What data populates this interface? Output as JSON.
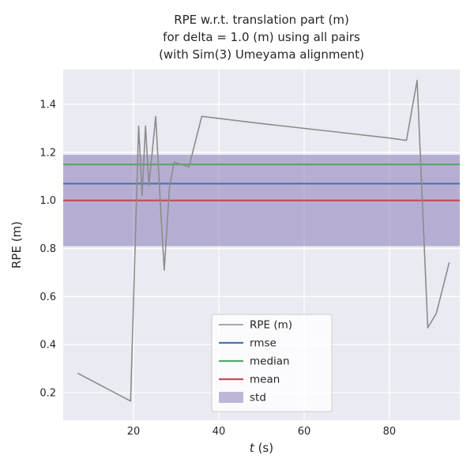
{
  "chart_data": {
    "type": "line",
    "title_lines": [
      "RPE w.r.t. translation part (m)",
      "for delta = 1.0 (m) using all pairs",
      "(with Sim(3) Umeyama alignment)"
    ],
    "xlabel_italic": "t",
    "xlabel_rest": " (s)",
    "ylabel": "RPE (m)",
    "xlim": [
      3.5,
      96.5
    ],
    "ylim": [
      0.085,
      1.545
    ],
    "xticks": [
      20,
      40,
      60,
      80
    ],
    "yticks": [
      0.2,
      0.4,
      0.6,
      0.8,
      1.0,
      1.2,
      1.4
    ],
    "grid": true,
    "background": "#eaeaf2",
    "grid_color": "#ffffff",
    "text_color": "#262626",
    "series": [
      {
        "name": "RPE (m)",
        "color": "#8c8c8c",
        "x": [
          7.0,
          19.3,
          21.2,
          22.0,
          22.8,
          23.6,
          25.2,
          26.4,
          27.2,
          28.4,
          29.5,
          33.0,
          36.0,
          50.0,
          65.0,
          80.0,
          84.0,
          86.5,
          89.0,
          91.0,
          94.0
        ],
        "y": [
          0.28,
          0.165,
          1.31,
          1.02,
          1.31,
          1.06,
          1.35,
          0.95,
          0.71,
          1.05,
          1.16,
          1.14,
          1.35,
          1.32,
          1.29,
          1.26,
          1.25,
          1.5,
          0.47,
          0.53,
          0.74
        ]
      }
    ],
    "hlines": [
      {
        "name": "rmse",
        "y": 1.07,
        "color": "#4c72b0"
      },
      {
        "name": "median",
        "y": 1.15,
        "color": "#55a868"
      },
      {
        "name": "mean",
        "y": 1.0,
        "color": "#c44e52"
      }
    ],
    "band": {
      "name": "std",
      "ymin": 0.81,
      "ymax": 1.19,
      "color": "#8172b2",
      "opacity": 0.5
    },
    "legend": {
      "position": "lower center",
      "entries": [
        {
          "label": "RPE (m)",
          "swatch": "line",
          "color": "#8c8c8c"
        },
        {
          "label": "rmse",
          "swatch": "line",
          "color": "#4c72b0"
        },
        {
          "label": "median",
          "swatch": "line",
          "color": "#55a868"
        },
        {
          "label": "mean",
          "swatch": "line",
          "color": "#c44e52"
        },
        {
          "label": "std",
          "swatch": "patch",
          "color": "#8172b2"
        }
      ]
    }
  }
}
